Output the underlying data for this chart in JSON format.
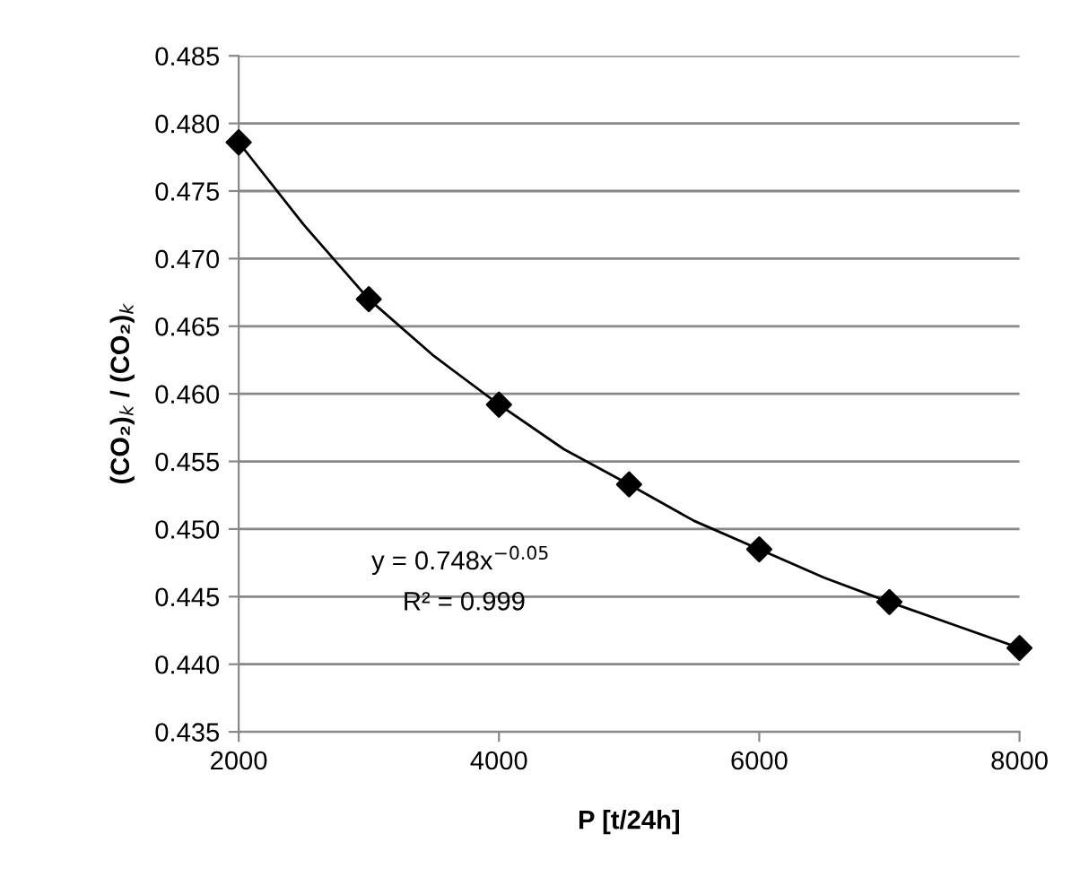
{
  "chart_data": {
    "type": "scatter",
    "xlabel": "P [t/24h]",
    "ylabel": "(CO₂)$_{k}$ / (CO₂)$_{k}$",
    "series": [
      {
        "color": "#000000",
        "marker": "diamond",
        "x": [
          2000,
          3000,
          4000,
          5000,
          6000,
          7000,
          8000
        ],
        "values": [
          0.4786,
          0.467,
          0.4592,
          0.4533,
          0.4485,
          0.4446,
          0.4412
        ]
      },
      {
        "type": "line",
        "color": "#000000",
        "marker": "none",
        "x": [
          2000,
          2500,
          3000,
          3500,
          4000,
          4500,
          5000,
          5500,
          6000,
          6500,
          7000,
          7500,
          8000
        ],
        "values": [
          0.4786,
          0.4725,
          0.467,
          0.4628,
          0.4592,
          0.4559,
          0.4533,
          0.4506,
          0.4485,
          0.4464,
          0.4446,
          0.4429,
          0.4412
        ]
      }
    ],
    "annotations": [
      "y = 0.748x$^{−0.05}$",
      "R² = 0.999"
    ],
    "xlim": [
      2000,
      8000
    ],
    "xticks": [
      2000,
      4000,
      6000,
      8000
    ],
    "ylim": [
      0.435,
      0.485
    ],
    "yticks": [
      {
        "value": 0.435,
        "label": "0.435"
      },
      {
        "value": 0.44,
        "label": "0.440"
      },
      {
        "value": 0.445,
        "label": "0.445"
      },
      {
        "value": 0.45,
        "label": "0.450"
      },
      {
        "value": 0.455,
        "label": "0.455"
      },
      {
        "value": 0.46,
        "label": "0.460"
      },
      {
        "value": 0.465,
        "label": "0.465"
      },
      {
        "value": 0.47,
        "label": "0.470"
      },
      {
        "value": 0.475,
        "label": "0.475"
      },
      {
        "value": 0.48,
        "label": "0.480"
      },
      {
        "value": 0.485,
        "label": "0.485"
      }
    ],
    "grid": "y",
    "legend": false
  }
}
